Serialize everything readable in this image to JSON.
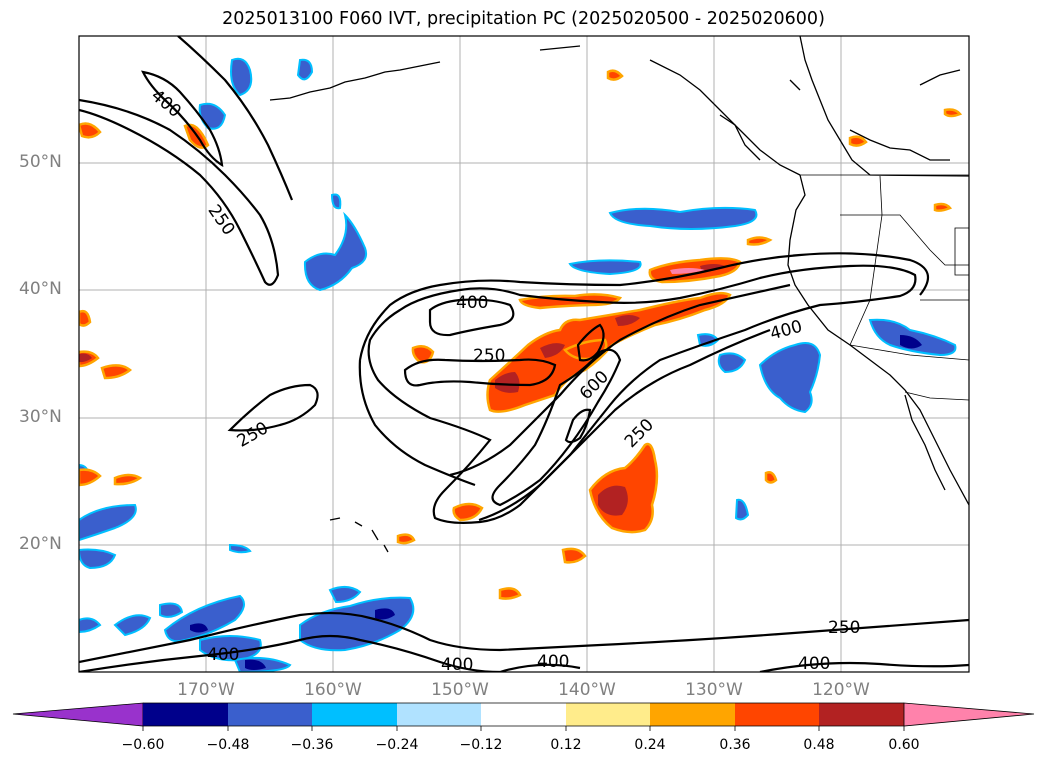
{
  "title": "2025013100 F060 IVT, precipitation PC (2025020500 - 2025020600)",
  "lat_labels": [
    "50°N",
    "40°N",
    "30°N",
    "20°N"
  ],
  "lon_labels": [
    "170°W",
    "160°W",
    "150°W",
    "140°W",
    "130°W",
    "120°W"
  ],
  "colorbar": {
    "ticks": [
      "−0.60",
      "−0.48",
      "−0.36",
      "−0.24",
      "−0.12",
      "0.12",
      "0.24",
      "0.36",
      "0.48",
      "0.60"
    ],
    "colors": [
      "#9932cc",
      "#00008b",
      "#3a5fcd",
      "#00bfff",
      "#b0e2ff",
      "#ffffff",
      "#ffec8b",
      "#ffa500",
      "#ff4500",
      "#b22222",
      "#ff82ab"
    ]
  },
  "contour_labels": {
    "c400_nw": "400",
    "c250_nw": "250",
    "c400_center": "400",
    "c250_center": "250",
    "c600": "600",
    "c250_center2": "250",
    "c400_coast": "400",
    "c250_west": "250",
    "c400_sw": "400",
    "c400_s1": "400",
    "c400_s2": "400",
    "c250_se": "250",
    "c400_se": "400"
  }
}
